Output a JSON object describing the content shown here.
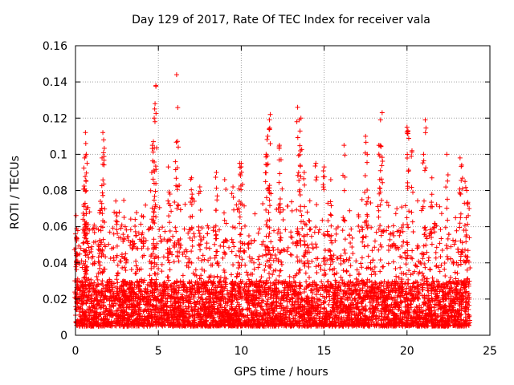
{
  "chart_data": {
    "type": "scatter",
    "title": "Day 129 of 2017, Rate Of TEC Index for receiver vala",
    "xlabel": "GPS time / hours",
    "ylabel": "ROTI / TECUs",
    "xlim": [
      0,
      25
    ],
    "ylim": [
      0,
      0.16
    ],
    "xticks": [
      0,
      5,
      10,
      15,
      20,
      25
    ],
    "yticks": [
      0,
      0.02,
      0.04,
      0.06,
      0.08,
      0.1,
      0.12,
      0.14,
      0.16
    ],
    "ytick_labels": [
      "0",
      "0.02",
      "0.04",
      "0.06",
      "0.08",
      "0.1",
      "0.12",
      "0.14",
      "0.16"
    ],
    "grid": true,
    "marker": "+",
    "color": "#ff0000",
    "series": [
      {
        "name": "ROTI",
        "x_range": [
          0,
          23.8
        ],
        "base_mean": 0.015,
        "dense_band": [
          0.005,
          0.03
        ],
        "points": [
          [
            0.0,
            0.056
          ],
          [
            0.05,
            0.054
          ],
          [
            0.1,
            0.045
          ],
          [
            0.5,
            0.072
          ],
          [
            0.55,
            0.098
          ],
          [
            0.6,
            0.112
          ],
          [
            0.62,
            0.106
          ],
          [
            0.65,
            0.1
          ],
          [
            0.7,
            0.095
          ],
          [
            1.6,
            0.098
          ],
          [
            1.65,
            0.112
          ],
          [
            1.7,
            0.108
          ],
          [
            1.5,
            0.074
          ],
          [
            2.5,
            0.066
          ],
          [
            3.0,
            0.06
          ],
          [
            3.6,
            0.064
          ],
          [
            4.0,
            0.066
          ],
          [
            4.6,
            0.09
          ],
          [
            4.7,
            0.107
          ],
          [
            4.75,
            0.12
          ],
          [
            4.8,
            0.128
          ],
          [
            4.85,
            0.138
          ],
          [
            6.1,
            0.144
          ],
          [
            6.2,
            0.104
          ],
          [
            5.6,
            0.093
          ],
          [
            5.7,
            0.078
          ],
          [
            7.0,
            0.087
          ],
          [
            7.5,
            0.082
          ],
          [
            8.5,
            0.09
          ],
          [
            9.0,
            0.086
          ],
          [
            9.5,
            0.082
          ],
          [
            9.9,
            0.095
          ],
          [
            10.0,
            0.095
          ],
          [
            11.5,
            0.1
          ],
          [
            11.6,
            0.11
          ],
          [
            11.7,
            0.119
          ],
          [
            11.75,
            0.122
          ],
          [
            12.3,
            0.105
          ],
          [
            12.4,
            0.097
          ],
          [
            13.4,
            0.126
          ],
          [
            13.5,
            0.119
          ],
          [
            13.6,
            0.12
          ],
          [
            13.8,
            0.09
          ],
          [
            14.5,
            0.095
          ],
          [
            15.0,
            0.093
          ],
          [
            15.4,
            0.086
          ],
          [
            16.2,
            0.105
          ],
          [
            17.5,
            0.11
          ],
          [
            17.6,
            0.1
          ],
          [
            18.4,
            0.119
          ],
          [
            18.5,
            0.123
          ],
          [
            18.3,
            0.105
          ],
          [
            20.0,
            0.115
          ],
          [
            20.05,
            0.113
          ],
          [
            20.3,
            0.102
          ],
          [
            21.0,
            0.1
          ],
          [
            21.1,
            0.119
          ],
          [
            21.5,
            0.087
          ],
          [
            22.4,
            0.1
          ],
          [
            23.2,
            0.098
          ],
          [
            23.3,
            0.094
          ],
          [
            23.5,
            0.085
          ],
          [
            23.6,
            0.08
          ]
        ]
      }
    ]
  }
}
